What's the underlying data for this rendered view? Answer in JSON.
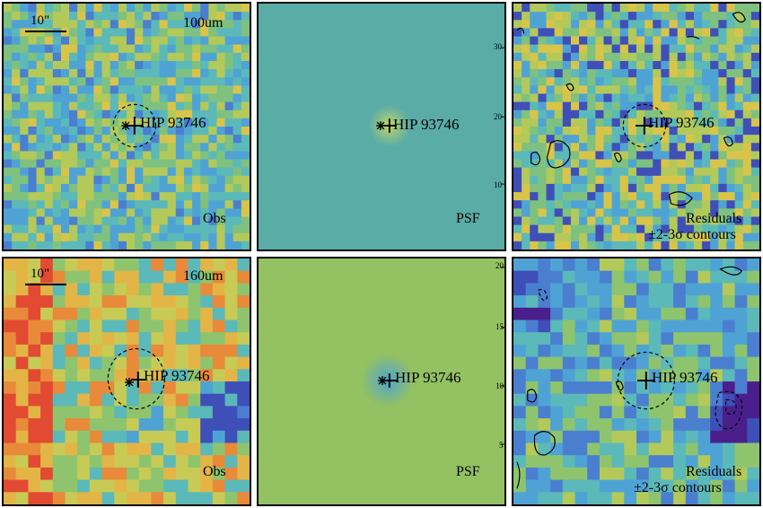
{
  "source_name": "HIP 93746",
  "scale_label": "10\"",
  "rows": [
    {
      "band": "100um",
      "obs": {
        "caption": "Obs",
        "palette": [
          "#3f4fb8",
          "#4a7fd0",
          "#4fa3d4",
          "#5bb9b9",
          "#7fc17f",
          "#b3c95a",
          "#d9c44a",
          "#e6a33a"
        ]
      },
      "psf": {
        "caption": "PSF",
        "background": "#5aaca6",
        "core": "#c8d85a"
      },
      "res": {
        "caption": "Residuals",
        "caption2": "±2-3σ contours"
      }
    },
    {
      "band": "160um",
      "obs": {
        "caption": "Obs",
        "palette": [
          "#3f4fb8",
          "#4a7fd0",
          "#4fa3d4",
          "#5bb9b9",
          "#8ec46e",
          "#c7cb55",
          "#e3b546",
          "#e88a3a",
          "#e24a32"
        ]
      },
      "psf": {
        "caption": "PSF",
        "background": "#94c162",
        "core": "#4fa3c8"
      },
      "res": {
        "caption": "Residuals",
        "caption2": "±2-3σ contours"
      }
    }
  ],
  "axis_ticks_psf_top": [
    "30",
    "20",
    "10"
  ],
  "axis_ticks_psf_bottom": [
    "20",
    "15",
    "10",
    "5"
  ]
}
